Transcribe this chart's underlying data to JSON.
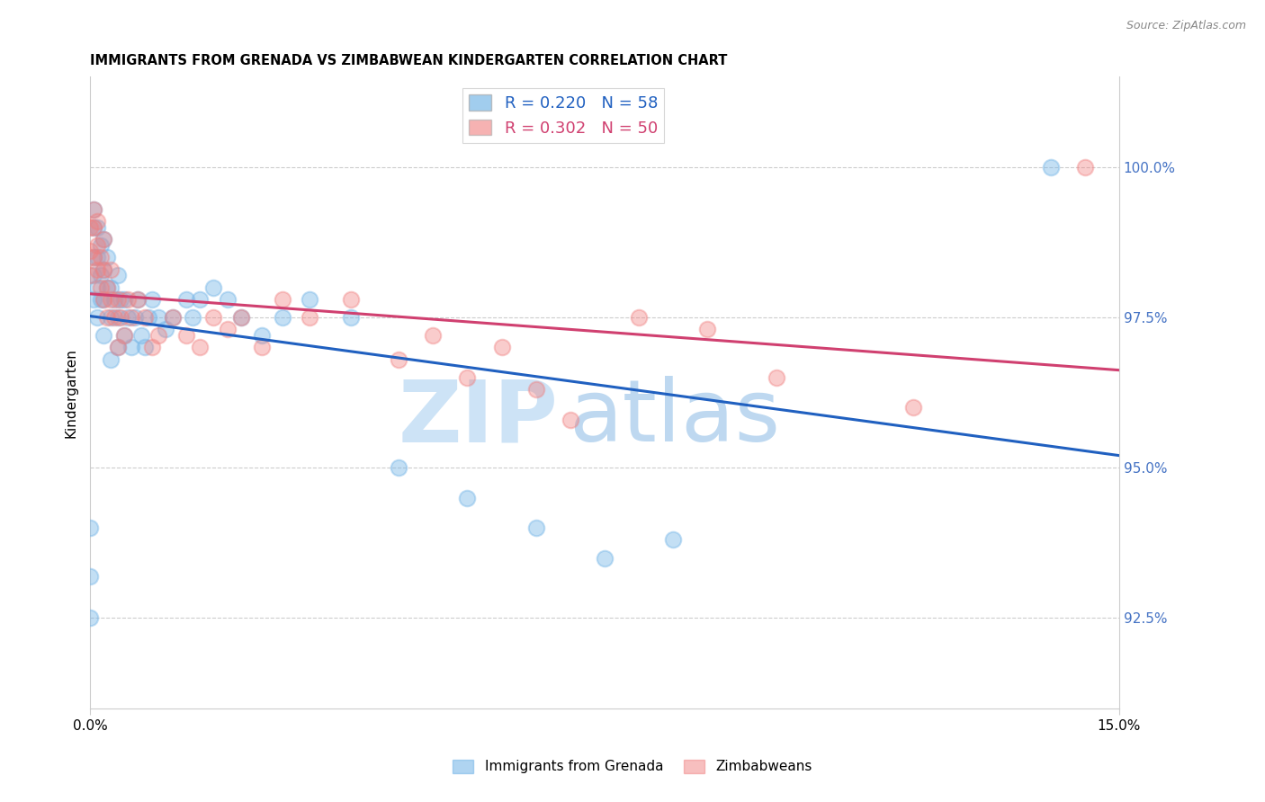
{
  "title": "IMMIGRANTS FROM GRENADA VS ZIMBABWEAN KINDERGARTEN CORRELATION CHART",
  "source": "Source: ZipAtlas.com",
  "ylabel": "Kindergarten",
  "legend_label_blue": "Immigrants from Grenada",
  "legend_label_pink": "Zimbabweans",
  "r_blue": 0.22,
  "n_blue": 58,
  "r_pink": 0.302,
  "n_pink": 50,
  "color_blue": "#7ab8e8",
  "color_pink": "#f08080",
  "color_blue_line": "#2060c0",
  "color_pink_line": "#d04070",
  "x_min": 0.0,
  "x_max": 15.0,
  "y_min": 91.0,
  "y_max": 101.5,
  "y_ticks": [
    100.0,
    97.5,
    95.0,
    92.5
  ],
  "blue_x": [
    0.0,
    0.0,
    0.0,
    0.05,
    0.05,
    0.05,
    0.05,
    0.05,
    0.1,
    0.1,
    0.1,
    0.1,
    0.15,
    0.15,
    0.15,
    0.2,
    0.2,
    0.2,
    0.2,
    0.25,
    0.25,
    0.3,
    0.3,
    0.3,
    0.35,
    0.4,
    0.4,
    0.4,
    0.45,
    0.5,
    0.5,
    0.55,
    0.6,
    0.65,
    0.7,
    0.75,
    0.8,
    0.85,
    0.9,
    1.0,
    1.1,
    1.2,
    1.4,
    1.5,
    1.6,
    1.8,
    2.0,
    2.2,
    2.5,
    2.8,
    3.2,
    3.8,
    4.5,
    5.5,
    6.5,
    7.5,
    8.5,
    14.0
  ],
  "blue_y": [
    92.5,
    93.2,
    94.0,
    97.8,
    98.2,
    98.5,
    99.0,
    99.3,
    97.5,
    98.0,
    98.5,
    99.0,
    97.8,
    98.2,
    98.7,
    97.2,
    97.8,
    98.3,
    98.8,
    98.0,
    98.5,
    96.8,
    97.5,
    98.0,
    97.8,
    97.0,
    97.5,
    98.2,
    97.8,
    97.2,
    97.8,
    97.5,
    97.0,
    97.5,
    97.8,
    97.2,
    97.0,
    97.5,
    97.8,
    97.5,
    97.3,
    97.5,
    97.8,
    97.5,
    97.8,
    98.0,
    97.8,
    97.5,
    97.2,
    97.5,
    97.8,
    97.5,
    95.0,
    94.5,
    94.0,
    93.5,
    93.8,
    100.0
  ],
  "pink_x": [
    0.0,
    0.0,
    0.0,
    0.05,
    0.05,
    0.05,
    0.1,
    0.1,
    0.1,
    0.15,
    0.15,
    0.2,
    0.2,
    0.2,
    0.25,
    0.25,
    0.3,
    0.3,
    0.35,
    0.4,
    0.4,
    0.45,
    0.5,
    0.55,
    0.6,
    0.7,
    0.8,
    0.9,
    1.0,
    1.2,
    1.4,
    1.6,
    1.8,
    2.0,
    2.2,
    2.5,
    2.8,
    3.2,
    3.8,
    4.5,
    5.0,
    5.5,
    6.0,
    6.5,
    7.0,
    8.0,
    9.0,
    10.0,
    12.0,
    14.5
  ],
  "pink_y": [
    98.2,
    98.6,
    99.0,
    98.5,
    99.0,
    99.3,
    98.3,
    98.7,
    99.1,
    98.0,
    98.5,
    97.8,
    98.3,
    98.8,
    97.5,
    98.0,
    97.8,
    98.3,
    97.5,
    97.0,
    97.8,
    97.5,
    97.2,
    97.8,
    97.5,
    97.8,
    97.5,
    97.0,
    97.2,
    97.5,
    97.2,
    97.0,
    97.5,
    97.3,
    97.5,
    97.0,
    97.8,
    97.5,
    97.8,
    96.8,
    97.2,
    96.5,
    97.0,
    96.3,
    95.8,
    97.5,
    97.3,
    96.5,
    96.0,
    100.0
  ]
}
